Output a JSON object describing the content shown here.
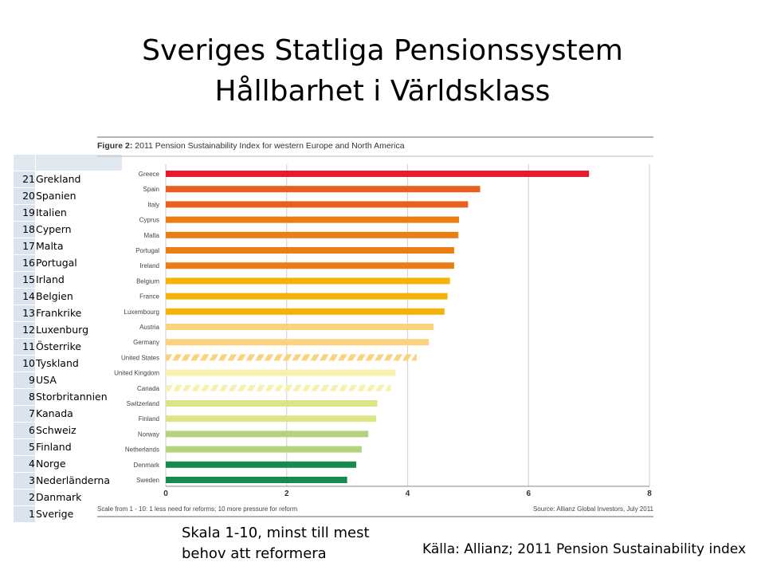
{
  "slide": {
    "title_line1": "Sveriges Statliga Pensionssystem",
    "title_line2": "Hållbarhet i Världsklass",
    "caption_scale": "Skala 1-10, minst till mest behov att reformera",
    "caption_source": "Källa: Allianz; 2011 Pension Sustainability index"
  },
  "ranking": [
    {
      "rank": "21",
      "country": "Grekland"
    },
    {
      "rank": "20",
      "country": "Spanien"
    },
    {
      "rank": "19",
      "country": "Italien"
    },
    {
      "rank": "18",
      "country": "Cypern"
    },
    {
      "rank": "17",
      "country": "Malta"
    },
    {
      "rank": "16",
      "country": "Portugal"
    },
    {
      "rank": "15",
      "country": "Irland"
    },
    {
      "rank": "14",
      "country": "Belgien"
    },
    {
      "rank": "13",
      "country": "Frankrike"
    },
    {
      "rank": "12",
      "country": "Luxenburg"
    },
    {
      "rank": "11",
      "country": "Österrike"
    },
    {
      "rank": "10",
      "country": "Tyskland"
    },
    {
      "rank": "9",
      "country": "USA"
    },
    {
      "rank": "8",
      "country": "Storbritannien"
    },
    {
      "rank": "7",
      "country": "Kanada"
    },
    {
      "rank": "6",
      "country": "Schweiz"
    },
    {
      "rank": "5",
      "country": "Finland"
    },
    {
      "rank": "4",
      "country": "Norge"
    },
    {
      "rank": "3",
      "country": "Nederländerna"
    },
    {
      "rank": "2",
      "country": "Danmark"
    },
    {
      "rank": "1",
      "country": "Sverige"
    }
  ],
  "chart_data": {
    "type": "bar",
    "orientation": "horizontal",
    "title": "Figure 2: 2011 Pension Sustainability Index for western Europe and North America",
    "title_prefix": "Figure 2:",
    "title_text": "2011 Pension Sustainability Index for western Europe and North America",
    "footnote": "Scale from 1 - 10: 1 less need for reforms; 10 more pressure for reform",
    "source": "Source: Allianz Global Investors, July 2011",
    "xlim": [
      0,
      8
    ],
    "xticks": [
      "0",
      "2",
      "4",
      "6",
      "8"
    ],
    "grid": "vertical",
    "categories": [
      "Greece",
      "Spain",
      "Italy",
      "Cyprus",
      "Malta",
      "Portugal",
      "Ireland",
      "Belgium",
      "France",
      "Luxembourg",
      "Austria",
      "Germany",
      "United States",
      "United Kingdom",
      "Canada",
      "Switzerland",
      "Finland",
      "Norway",
      "Netherlands",
      "Denmark",
      "Sweden"
    ],
    "values": [
      7.0,
      5.2,
      5.0,
      4.85,
      4.84,
      4.77,
      4.77,
      4.7,
      4.66,
      4.61,
      4.43,
      4.35,
      4.15,
      3.8,
      3.72,
      3.5,
      3.48,
      3.35,
      3.24,
      3.15,
      3.0
    ],
    "colors": [
      "#e31d2f",
      "#e8601e",
      "#e8601e",
      "#ec7d15",
      "#ec7d15",
      "#ec7d15",
      "#ec7d15",
      "#f5b20a",
      "#f5b20a",
      "#f5b20a",
      "#fbd37f",
      "#fbd37f",
      "#fbd37f",
      "#f7f1b0",
      "#f7f1b0",
      "#dde487",
      "#dde487",
      "#b5d27f",
      "#b5d27f",
      "#178a4e",
      "#178a4e"
    ],
    "hatched": [
      false,
      false,
      false,
      false,
      false,
      false,
      false,
      false,
      false,
      false,
      false,
      false,
      true,
      false,
      true,
      false,
      false,
      false,
      false,
      false,
      false
    ]
  }
}
